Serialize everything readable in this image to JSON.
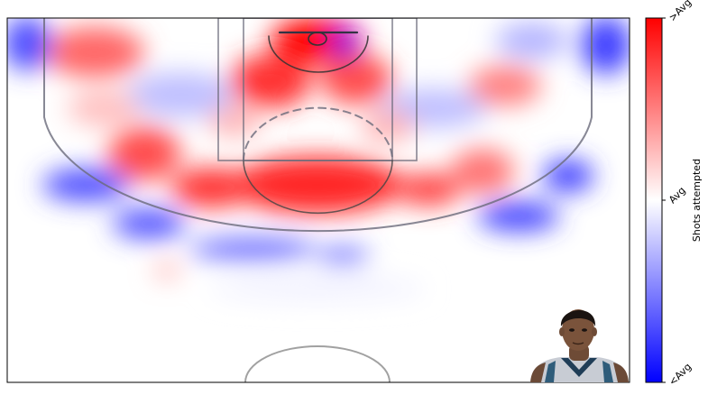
{
  "chart_data": {
    "type": "heatmap",
    "title": "",
    "xlabel": "",
    "ylabel": "",
    "colorbar": {
      "label": "Shots attempted",
      "ticks": [
        "<Avg",
        "Avg",
        ">Avg"
      ],
      "colors": [
        "#0000ff",
        "#ffffff",
        "#ff0000"
      ]
    },
    "grid": false,
    "court": "half-court, basket at top",
    "player_photo": "player-headshot",
    "hot_zones": [
      {
        "zone": "restricted-area",
        "level": 1.0
      },
      {
        "zone": "paint-left",
        "level": 0.8
      },
      {
        "zone": "paint-right",
        "level": 0.7
      },
      {
        "zone": "paint-near-rim-right",
        "level": -0.9
      },
      {
        "zone": "free-throw-line",
        "level": 0.85
      },
      {
        "zone": "left-elbow",
        "level": 0.8
      },
      {
        "zone": "right-elbow",
        "level": 0.75
      },
      {
        "zone": "left-mid-range",
        "level": 0.7
      },
      {
        "zone": "right-mid-range",
        "level": 0.55
      },
      {
        "zone": "left-baseline-mid",
        "level": 0.6
      },
      {
        "zone": "right-baseline-mid",
        "level": 0.5
      },
      {
        "zone": "left-corner-three",
        "level": -0.7
      },
      {
        "zone": "right-corner-three",
        "level": -0.75
      },
      {
        "zone": "left-wing-three",
        "level": -0.7
      },
      {
        "zone": "top-of-key-three",
        "level": -0.6
      },
      {
        "zone": "right-wing-three",
        "level": -0.75
      },
      {
        "zone": "backcourt",
        "level": 0.0
      }
    ]
  }
}
